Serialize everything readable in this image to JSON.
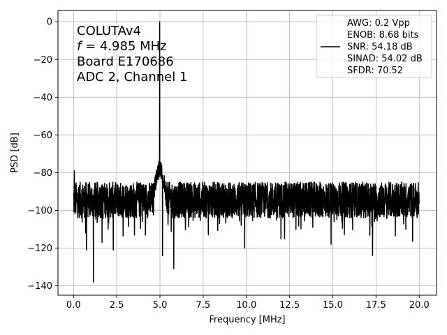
{
  "chart_data": {
    "type": "line",
    "xlabel": "Frequency [MHz]",
    "ylabel": "PSD [dB]",
    "xlim": [
      -0.9,
      21.0
    ],
    "ylim": [
      -145,
      6
    ],
    "xticks": [
      0.0,
      2.5,
      5.0,
      7.5,
      10.0,
      12.5,
      15.0,
      17.5,
      20.0
    ],
    "xtick_labels": [
      "0.0",
      "2.5",
      "5.0",
      "7.5",
      "10.0",
      "12.5",
      "15.0",
      "17.5",
      "20.0"
    ],
    "yticks": [
      0,
      -20,
      -40,
      -60,
      -80,
      -100,
      -120,
      -140
    ],
    "ytick_labels": [
      "0",
      "−20",
      "−40",
      "−60",
      "−80",
      "−100",
      "−120",
      "−140"
    ],
    "grid": true,
    "line_color": "#000000",
    "annotation": {
      "line1": "COLUTAv4",
      "line2_var": "f",
      "line2_rest": " = 4.985 MHz",
      "line3": "Board E170686",
      "line4": "ADC 2, Channel 1"
    },
    "legend": {
      "placement": "top-right",
      "lines": [
        "AWG: 0.2 Vpp",
        "ENOB: 8.68 bits",
        "SNR: 54.18 dB",
        "SINAD: 54.02 dB",
        "SFDR: 70.52"
      ]
    },
    "series": [
      {
        "noise_floor_mean_db": -95,
        "noise_floor_low_db": -104,
        "noise_floor_high_db": -85,
        "x_start_mhz": 0.0,
        "x_end_mhz": 20.0,
        "peaks": [
          {
            "x": 4.985,
            "y": 0
          },
          {
            "x": 0.05,
            "y": -79
          }
        ],
        "dips": [
          {
            "x": 0.05,
            "y": -113
          },
          {
            "x": 0.7,
            "y": -112
          },
          {
            "x": 0.75,
            "y": -121
          },
          {
            "x": 1.15,
            "y": -138
          },
          {
            "x": 1.65,
            "y": -117
          },
          {
            "x": 2.3,
            "y": -121
          },
          {
            "x": 5.15,
            "y": -124
          },
          {
            "x": 5.8,
            "y": -131
          },
          {
            "x": 7.8,
            "y": -113
          },
          {
            "x": 9.9,
            "y": -120
          },
          {
            "x": 17.3,
            "y": -124
          },
          {
            "x": 14.9,
            "y": -118
          }
        ]
      }
    ]
  }
}
